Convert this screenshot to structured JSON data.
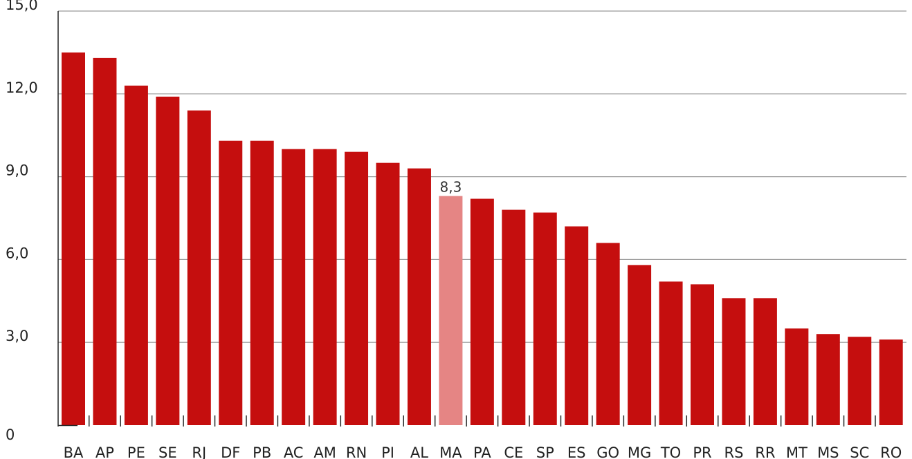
{
  "chart_data": {
    "type": "bar",
    "categories": [
      "BA",
      "AP",
      "PE",
      "SE",
      "RJ",
      "DF",
      "PB",
      "AC",
      "AM",
      "RN",
      "PI",
      "AL",
      "MA",
      "PA",
      "CE",
      "SP",
      "ES",
      "GO",
      "MG",
      "TO",
      "PR",
      "RS",
      "RR",
      "MT",
      "MS",
      "SC",
      "RO"
    ],
    "values": [
      13.5,
      13.3,
      12.3,
      11.9,
      11.4,
      10.3,
      10.3,
      10.0,
      10.0,
      9.9,
      9.5,
      9.3,
      8.3,
      8.2,
      7.8,
      7.7,
      7.2,
      6.6,
      5.8,
      5.2,
      5.1,
      4.6,
      4.6,
      3.5,
      3.3,
      3.2,
      3.1
    ],
    "highlight_index": 12,
    "data_labels": [
      {
        "index": 12,
        "text": "8,3"
      }
    ],
    "y_ticks": [
      {
        "value": 0,
        "label": "0"
      },
      {
        "value": 3,
        "label": "3,0"
      },
      {
        "value": 6,
        "label": "6,0"
      },
      {
        "value": 9,
        "label": "9,0"
      },
      {
        "value": 12,
        "label": "12,0"
      },
      {
        "value": 15,
        "label": "15,0"
      }
    ],
    "ylim": [
      0,
      15
    ],
    "grid": true,
    "colors": {
      "bar": "#c50e0e",
      "highlight": "#e58584",
      "grid": "#999999",
      "axis": "#222222"
    }
  }
}
